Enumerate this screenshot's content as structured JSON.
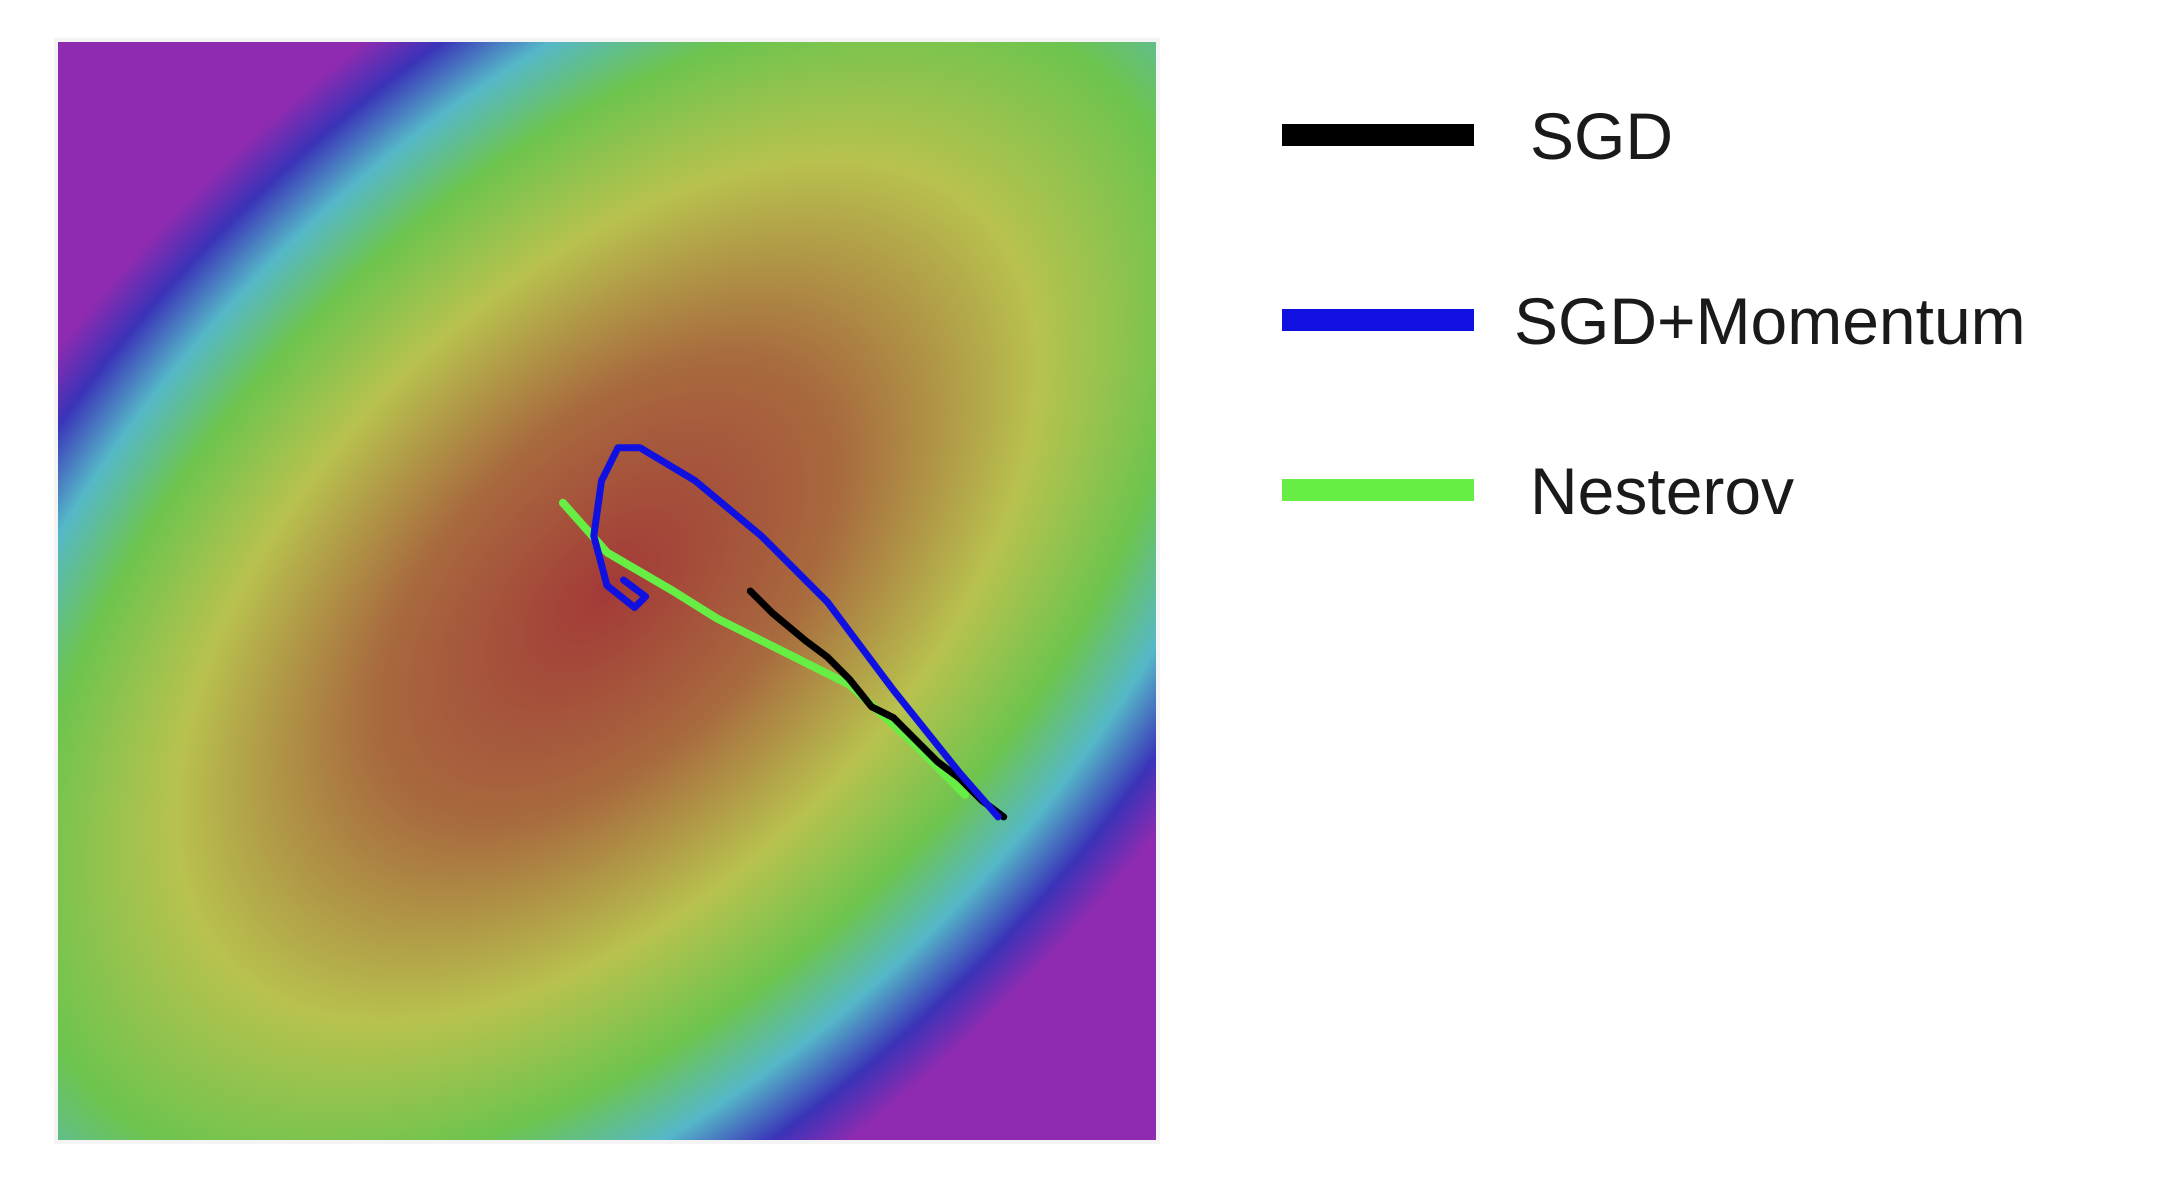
{
  "chart_data": {
    "type": "line",
    "title": "",
    "xlabel": "",
    "ylabel": "",
    "background": "filled-contour",
    "colormap": [
      "#8e2bb0",
      "#3a33b8",
      "#55b8c8",
      "#6cc44e",
      "#b8c24e",
      "#a86a3e",
      "#a33a38"
    ],
    "grid": false,
    "axes_ticks": false,
    "legend": {
      "placement": "right",
      "entries": [
        {
          "label": "SGD",
          "color": "#000000"
        },
        {
          "label": "SGD+Momentum",
          "color": "#1010e0"
        },
        {
          "label": "Nesterov",
          "color": "#66ee44"
        }
      ]
    },
    "series": [
      {
        "name": "SGD",
        "color": "#000000",
        "x": [
          0.86,
          0.84,
          0.82,
          0.8,
          0.78,
          0.76,
          0.74,
          0.72,
          0.7,
          0.68,
          0.65,
          0.63
        ],
        "y": [
          0.295,
          0.31,
          0.33,
          0.345,
          0.365,
          0.385,
          0.395,
          0.42,
          0.44,
          0.455,
          0.48,
          0.5
        ]
      },
      {
        "name": "SGD+Momentum",
        "color": "#1010e0",
        "x": [
          0.855,
          0.82,
          0.76,
          0.7,
          0.64,
          0.58,
          0.53,
          0.51,
          0.495,
          0.488,
          0.5,
          0.525,
          0.535,
          0.515
        ],
        "y": [
          0.295,
          0.335,
          0.41,
          0.49,
          0.55,
          0.6,
          0.63,
          0.63,
          0.6,
          0.55,
          0.505,
          0.485,
          0.495,
          0.51
        ]
      },
      {
        "name": "Nesterov",
        "color": "#66ee44",
        "x": [
          0.825,
          0.78,
          0.72,
          0.66,
          0.6,
          0.56,
          0.5,
          0.46
        ],
        "y": [
          0.315,
          0.36,
          0.415,
          0.445,
          0.475,
          0.5,
          0.535,
          0.58
        ]
      }
    ]
  }
}
